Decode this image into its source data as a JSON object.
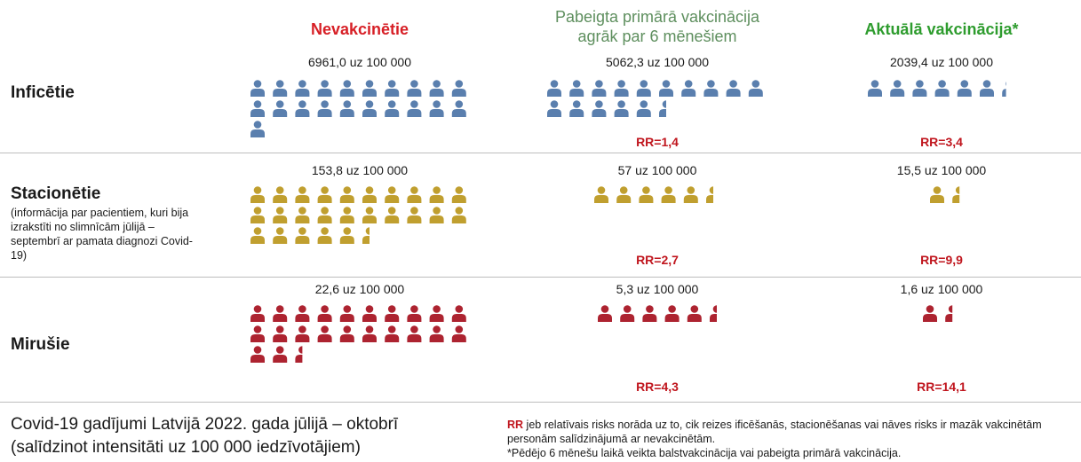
{
  "columns": [
    {
      "title": [
        "Nevakcinētie"
      ]
    },
    {
      "title": [
        "Pabeigta primārā vakcinācija",
        "agrāk par 6 mēnešiem"
      ]
    },
    {
      "title": [
        "Aktuālā vakcinācija*"
      ]
    }
  ],
  "rows": [
    {
      "label": "Inficētie",
      "rates": [
        "6961,0 uz 100 000",
        "5062,3 uz 100 000",
        "2039,4 uz 100 000"
      ],
      "rr": [
        "RR=1,4",
        "RR=3,4"
      ]
    },
    {
      "label": "Stacionētie",
      "note": "(informācija par pacientiem, kuri bija izrakstīti no slimnīcām jūlijā – septembrī ar pamata diagnozi Covid-19)",
      "rates": [
        "153,8 uz 100 000",
        "57 uz 100 000",
        "15,5 uz 100 000"
      ],
      "rr": [
        "RR=2,7",
        "RR=9,9"
      ]
    },
    {
      "label": "Mirušie",
      "rates": [
        "22,6 uz 100 000",
        "5,3 uz 100 000",
        "1,6 uz 100 000"
      ],
      "rr": [
        "RR=4,3",
        "RR=14,1"
      ]
    }
  ],
  "footer": {
    "title": [
      "Covid-19 gadījumi Latvijā 2022. gada jūlijā – oktobrī",
      "(salīdzinot intensitāti uz 100 000 iedzīvotājiem)"
    ],
    "rr_term": "RR",
    "rr_text": " jeb relatīvais risks norāda uz to, cik reizes ificēšanās, stacionēšanas vai nāves risks ir mazāk vakcinētām personām salīdzinājumā ar nevakcinētām.",
    "asterisk": "*Pēdējo 6 mēnešu laikā veikta balstvakcinācija vai pabeigta primārā vakcinācija."
  }
}
